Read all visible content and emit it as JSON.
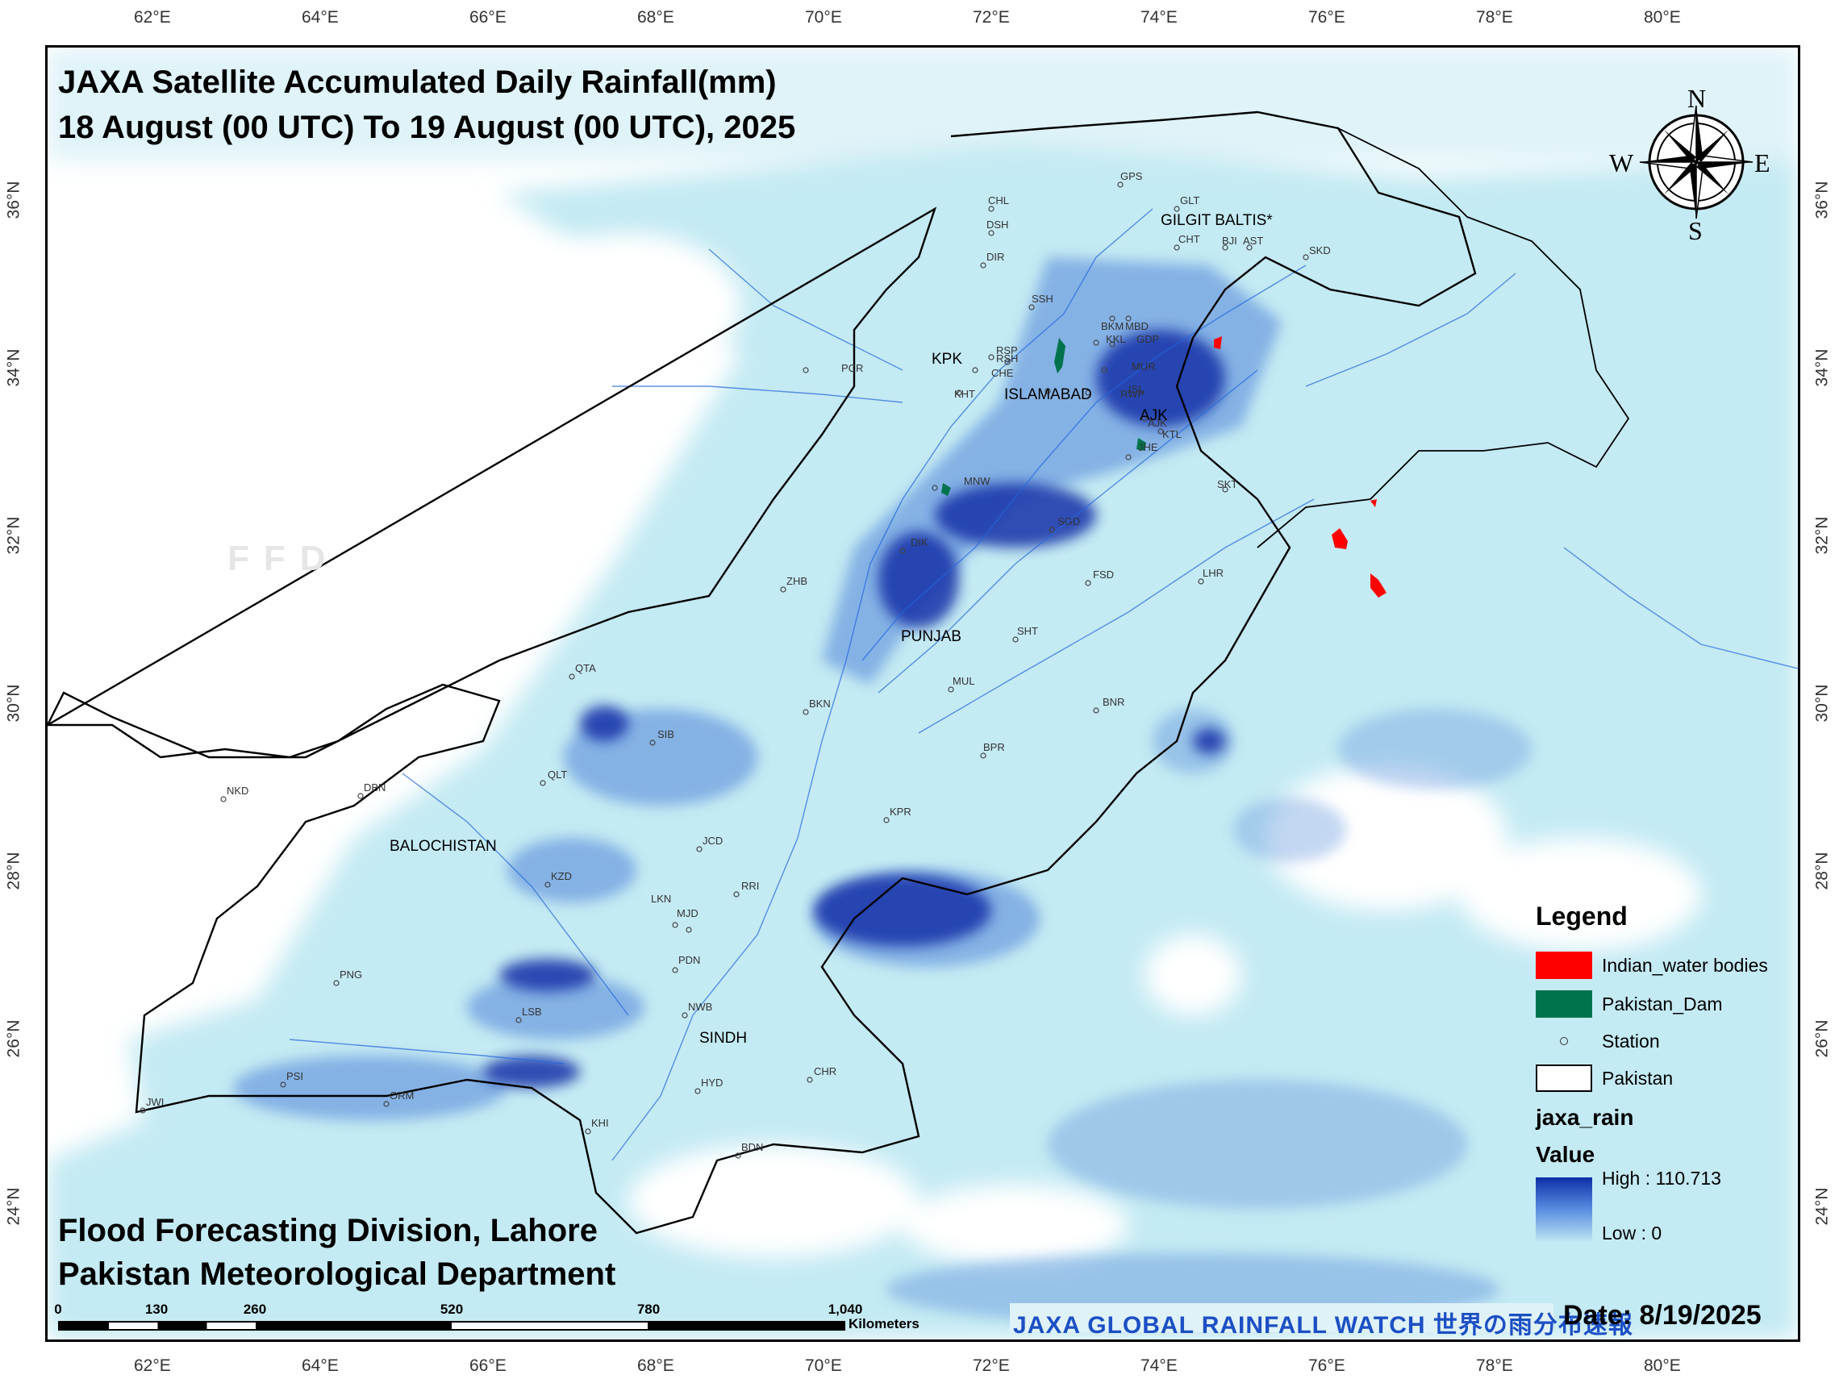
{
  "title_line1": "JAXA Satellite Accumulated Daily Rainfall(mm)",
  "title_line2": "18 August  (00 UTC) To 19 August (00 UTC), 2025",
  "credit_line1": "Flood Forecasting Division, Lahore",
  "credit_line2": "Pakistan Meteorological Department",
  "watermark": "FFD",
  "date_label": "Date: 8/19/2025",
  "jaxa_banner": "JAXA GLOBAL RAINFALL WATCH 世界の雨分布速報",
  "compass": {
    "n": "N",
    "s": "S",
    "e": "E",
    "w": "W"
  },
  "lon_ticks": [
    "62°E",
    "64°E",
    "66°E",
    "68°E",
    "70°E",
    "72°E",
    "74°E",
    "76°E",
    "78°E",
    "80°E"
  ],
  "lat_ticks": [
    "36°N",
    "34°N",
    "32°N",
    "30°N",
    "28°N",
    "26°N",
    "24°N"
  ],
  "regions": {
    "gilgit": "GILGIT BALTIS*",
    "kpk": "KPK",
    "islamabad": "ISLAMABAD",
    "ajk": "AJK",
    "punjab": "PUNJAB",
    "balochistan": "BALOCHISTAN",
    "sindh": "SINDH"
  },
  "stations": [
    "GPS",
    "GLT",
    "CHL",
    "DSH",
    "CHT",
    "BJI",
    "AST",
    "SKD",
    "DIR",
    "SSH",
    "BKM",
    "MBD",
    "KKL",
    "GDP",
    "RSH",
    "RSP",
    "PCR",
    "CHE",
    "MUR",
    "KHT",
    "ISL",
    "RWP",
    "AJK",
    "KTL",
    "JHE",
    "MNW",
    "SKT",
    "SGD",
    "DIK",
    "FSD",
    "LHR",
    "ZHB",
    "SHT",
    "QTA",
    "MUL",
    "BKN",
    "BNR",
    "SIB",
    "BPR",
    "QLT",
    "NKD",
    "DBN",
    "KPR",
    "JCD",
    "KZD",
    "RRI",
    "LKN",
    "MJD",
    "PDN",
    "PNG",
    "NWB",
    "LSB",
    "PSI",
    "HYD",
    "CHR",
    "JWI",
    "ORM",
    "KHI",
    "BDN"
  ],
  "legend": {
    "title": "Legend",
    "indian_water": "Indian_water bodies",
    "pakistan_dam": "Pakistan_Dam",
    "station": "Station",
    "pakistan": "Pakistan",
    "layer": "jaxa_rain",
    "value": "Value",
    "high": "High : 110.713",
    "low": "Low : 0",
    "colors": {
      "indian_water": "#ff0000",
      "pakistan_dam": "#00734c",
      "high": "#0d2fa8",
      "low": "#bfe6f2"
    }
  },
  "scale": {
    "labels": [
      "0",
      "130",
      "260",
      "520",
      "780",
      "1,040"
    ],
    "unit": "Kilometers"
  }
}
